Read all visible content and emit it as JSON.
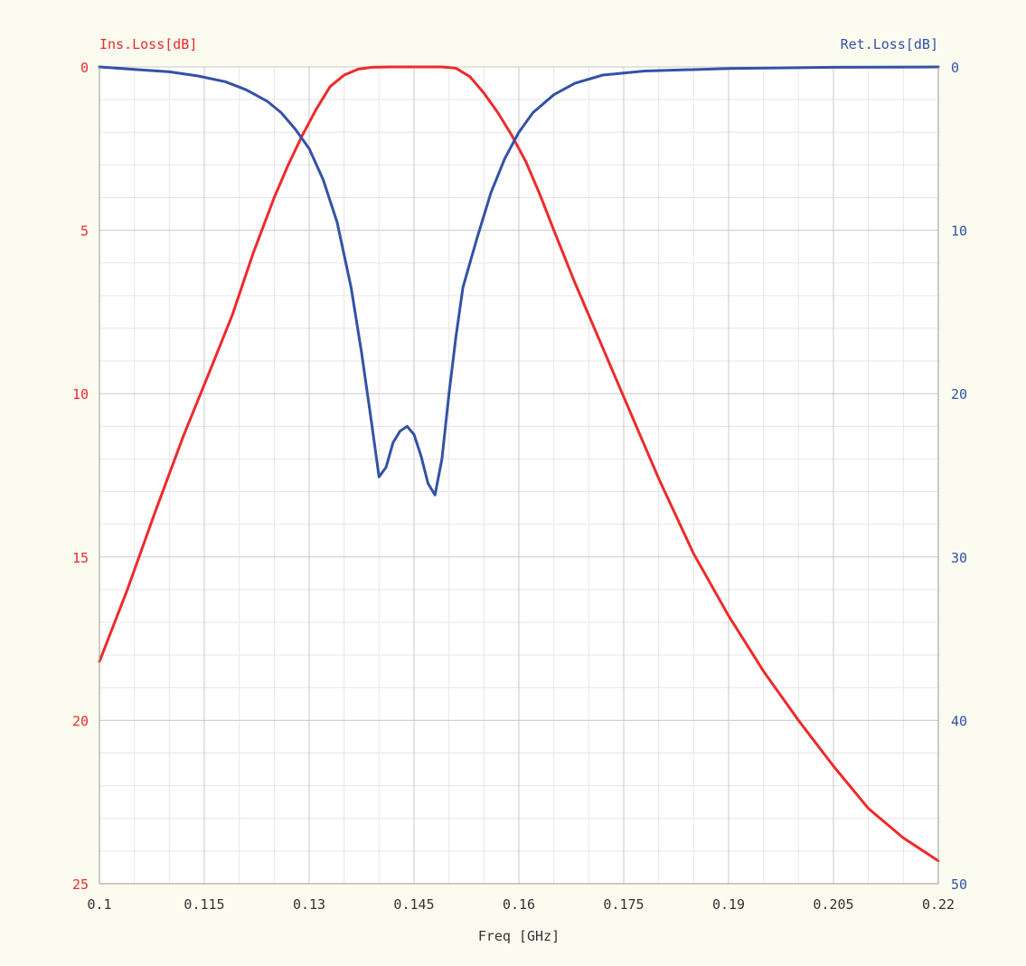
{
  "chart_data": {
    "type": "line",
    "title": "",
    "xlabel": "Freq [GHz]",
    "ylabel_left": "Ins.Loss[dB]",
    "ylabel_right": "Ret.Loss[dB]",
    "xlim": [
      0.1,
      0.22
    ],
    "ylim_left": [
      0,
      25
    ],
    "ylim_right": [
      0,
      50
    ],
    "y_inverted": true,
    "grid": true,
    "x_ticks": [
      "0.1",
      "0.115",
      "0.13",
      "0.145",
      "0.16",
      "0.175",
      "0.19",
      "0.205",
      "0.22"
    ],
    "x_tick_values": [
      0.1,
      0.115,
      0.13,
      0.145,
      0.16,
      0.175,
      0.19,
      0.205,
      0.22
    ],
    "y_ticks_left": [
      "0",
      "5",
      "10",
      "15",
      "20",
      "25"
    ],
    "y_tick_values_left": [
      0,
      5,
      10,
      15,
      20,
      25
    ],
    "y_ticks_right": [
      "0",
      "10",
      "20",
      "30",
      "40",
      "50"
    ],
    "y_tick_values_right": [
      0,
      10,
      20,
      30,
      40,
      50
    ],
    "colors": {
      "background": "#fbfbf0",
      "plot_background": "#ffffff",
      "grid_major": "#c8c8c8",
      "grid_minor": "#e6e6e6",
      "insertion_loss": "#ee2a2a",
      "return_loss": "#3352a6",
      "axis_text": "#333333"
    },
    "series": [
      {
        "axis": "left",
        "x": [
          0.1,
          0.104,
          0.108,
          0.112,
          0.116,
          0.119,
          0.122,
          0.125,
          0.127,
          0.129,
          0.131,
          0.133,
          0.135,
          0.137,
          0.139,
          0.1415,
          0.144,
          0.1465,
          0.149,
          0.151,
          0.153,
          0.155,
          0.157,
          0.159,
          0.161,
          0.163,
          0.165,
          0.168,
          0.171,
          0.175,
          0.18,
          0.185,
          0.19,
          0.195,
          0.2,
          0.205,
          0.21,
          0.215,
          0.22
        ],
        "values": [
          18.2,
          16.0,
          13.6,
          11.3,
          9.2,
          7.6,
          5.7,
          4.0,
          3.0,
          2.1,
          1.3,
          0.6,
          0.25,
          0.07,
          0.01,
          0.0,
          0.0,
          0.0,
          0.0,
          0.04,
          0.3,
          0.8,
          1.4,
          2.1,
          2.9,
          3.9,
          5.0,
          6.6,
          8.1,
          10.1,
          12.6,
          14.9,
          16.8,
          18.5,
          20.0,
          21.4,
          22.7,
          23.6,
          24.3
        ]
      },
      {
        "axis": "right",
        "x": [
          0.1,
          0.105,
          0.11,
          0.114,
          0.118,
          0.121,
          0.124,
          0.126,
          0.128,
          0.13,
          0.132,
          0.134,
          0.136,
          0.1375,
          0.139,
          0.14,
          0.141,
          0.142,
          0.143,
          0.144,
          0.145,
          0.146,
          0.147,
          0.148,
          0.149,
          0.15,
          0.151,
          0.152,
          0.154,
          0.156,
          0.158,
          0.16,
          0.162,
          0.165,
          0.168,
          0.172,
          0.178,
          0.19,
          0.205,
          0.22
        ],
        "values": [
          0.0,
          0.15,
          0.3,
          0.55,
          0.9,
          1.4,
          2.1,
          2.8,
          3.8,
          5.0,
          6.9,
          9.5,
          13.5,
          17.5,
          22.0,
          25.1,
          24.5,
          23.0,
          22.3,
          22.0,
          22.5,
          23.8,
          25.5,
          26.2,
          24.0,
          20.0,
          16.5,
          13.5,
          10.5,
          7.7,
          5.6,
          4.0,
          2.8,
          1.7,
          1.0,
          0.5,
          0.25,
          0.1,
          0.02,
          0.0
        ]
      }
    ]
  }
}
